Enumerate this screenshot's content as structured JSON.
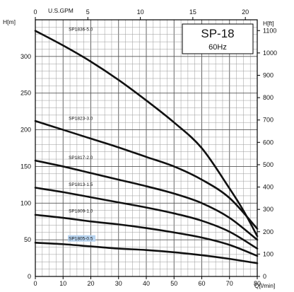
{
  "chart_data": {
    "type": "line",
    "title": "SP-18",
    "subtitle": "60Hz",
    "xlabel": "Q[l/min]",
    "ylabel": "H[m]",
    "top_axis_label": "U.S.GPM",
    "right_axis_label": "H[ft]",
    "xlim": [
      0,
      80
    ],
    "ylim": [
      0,
      350
    ],
    "x_ticks": [
      "0",
      "10",
      "20",
      "30",
      "40",
      "50",
      "60",
      "70",
      "80"
    ],
    "y_ticks": [
      "0",
      "50",
      "100",
      "150",
      "200",
      "250",
      "300"
    ],
    "top_ticks": [
      "0",
      "5",
      "10",
      "15",
      "20"
    ],
    "top_tick_values": [
      0,
      5,
      10,
      15,
      20
    ],
    "right_ticks": [
      "0",
      "100",
      "200",
      "300",
      "400",
      "500",
      "600",
      "700",
      "800",
      "900",
      "1000",
      "1100"
    ],
    "right_tick_values": [
      0,
      100,
      200,
      300,
      400,
      500,
      600,
      700,
      800,
      900,
      1000,
      1100
    ],
    "grid": true,
    "highlighted_series": "SP1805-0.5",
    "highlight_color": "#b8d4f0",
    "series": [
      {
        "name": "SP1836-5.0",
        "x": [
          0,
          10,
          20,
          30,
          40,
          50,
          60,
          70,
          75,
          80
        ],
        "y": [
          335,
          315,
          293,
          268,
          240,
          210,
          175,
          120,
          90,
          55
        ]
      },
      {
        "name": "SP1823-3.0",
        "x": [
          0,
          10,
          20,
          30,
          40,
          50,
          60,
          70,
          80
        ],
        "y": [
          212,
          200,
          188,
          176,
          163,
          150,
          132,
          107,
          65
        ]
      },
      {
        "name": "SP1817-2.0",
        "x": [
          0,
          10,
          20,
          30,
          40,
          50,
          60,
          70,
          80
        ],
        "y": [
          158,
          150,
          141,
          132,
          123,
          113,
          100,
          80,
          50
        ]
      },
      {
        "name": "SP1813-1.5",
        "x": [
          0,
          10,
          20,
          30,
          40,
          50,
          60,
          70,
          80
        ],
        "y": [
          121,
          115,
          108,
          101,
          94,
          86,
          76,
          61,
          38
        ]
      },
      {
        "name": "SP1809-1.0",
        "x": [
          0,
          10,
          20,
          30,
          40,
          50,
          60,
          70,
          80
        ],
        "y": [
          84,
          80,
          75,
          71,
          66,
          60,
          53,
          43,
          28
        ]
      },
      {
        "name": "SP1805-0.5",
        "x": [
          0,
          10,
          20,
          30,
          40,
          50,
          60,
          70,
          80
        ],
        "y": [
          46,
          44,
          41,
          38,
          36,
          33,
          29,
          24,
          18
        ]
      }
    ]
  }
}
